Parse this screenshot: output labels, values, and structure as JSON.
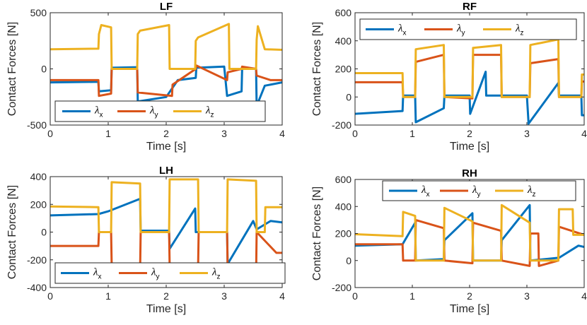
{
  "chart_data": [
    {
      "type": "line",
      "title": "LF",
      "xlabel": "Time [s]",
      "ylabel": "Contact Forces [N]",
      "xlim": [
        0,
        4
      ],
      "ylim": [
        -500,
        500
      ],
      "xticks": [
        0,
        1,
        2,
        3,
        4
      ],
      "yticks": [
        -500,
        0,
        500
      ],
      "legend_placement": "bottom",
      "series": [
        {
          "name": "λx",
          "color": "#0072BD",
          "x": [
            0,
            0.83,
            0.84,
            1.05,
            1.06,
            1.5,
            1.51,
            2.0,
            2.2,
            2.51,
            2.52,
            3.0,
            3.05,
            3.3,
            3.31,
            3.55,
            3.56,
            3.7,
            4.0
          ],
          "y": [
            -120,
            -115,
            -200,
            -190,
            10,
            15,
            -290,
            -250,
            -100,
            -80,
            10,
            20,
            -240,
            -200,
            10,
            0,
            -330,
            -150,
            -120
          ]
        },
        {
          "name": "λy",
          "color": "#D95319",
          "x": [
            0,
            0.83,
            0.84,
            1.05,
            1.06,
            1.5,
            1.51,
            2.1,
            2.11,
            2.51,
            2.52,
            3.05,
            3.06,
            3.3,
            3.31,
            3.55,
            3.56,
            3.8,
            4.0
          ],
          "y": [
            -100,
            -100,
            -240,
            -220,
            0,
            0,
            -210,
            -240,
            -140,
            0,
            30,
            -100,
            -30,
            0,
            20,
            0,
            -60,
            -100,
            -100
          ]
        },
        {
          "name": "λz",
          "color": "#EDB120",
          "x": [
            0,
            0.83,
            0.84,
            0.88,
            1.05,
            1.06,
            1.5,
            1.51,
            1.55,
            2.05,
            2.06,
            2.5,
            2.51,
            2.55,
            3.08,
            3.09,
            3.55,
            3.56,
            3.58,
            3.7,
            4.0
          ],
          "y": [
            175,
            180,
            310,
            390,
            370,
            0,
            0,
            310,
            340,
            390,
            0,
            0,
            250,
            280,
            400,
            0,
            0,
            260,
            380,
            175,
            170
          ]
        }
      ]
    },
    {
      "type": "line",
      "title": "RF",
      "xlabel": "Time [s]",
      "ylabel": "Contact Forces [N]",
      "xlim": [
        0,
        4
      ],
      "ylim": [
        -200,
        600
      ],
      "xticks": [
        0,
        1,
        2,
        3,
        4
      ],
      "yticks": [
        -200,
        0,
        200,
        400,
        600
      ],
      "legend_placement": "top",
      "series": [
        {
          "name": "λx",
          "color": "#0072BD",
          "x": [
            0,
            0.83,
            0.84,
            1.05,
            1.06,
            1.55,
            1.56,
            2.0,
            2.01,
            2.28,
            2.29,
            2.55,
            2.56,
            3.0,
            3.03,
            3.55,
            3.56,
            3.95,
            3.96,
            4.0
          ],
          "y": [
            -120,
            -100,
            10,
            10,
            -180,
            -80,
            10,
            10,
            -120,
            180,
            10,
            10,
            10,
            10,
            -190,
            100,
            10,
            10,
            -130,
            -130
          ]
        },
        {
          "name": "λy",
          "color": "#D95319",
          "x": [
            0,
            0.83,
            0.84,
            1.05,
            1.06,
            1.55,
            1.56,
            2.05,
            2.06,
            2.55,
            2.56,
            3.05,
            3.06,
            3.55,
            3.56,
            3.95,
            3.96,
            4.0
          ],
          "y": [
            105,
            105,
            0,
            0,
            250,
            300,
            0,
            -10,
            300,
            300,
            0,
            0,
            240,
            270,
            0,
            0,
            110,
            110
          ]
        },
        {
          "name": "λz",
          "color": "#EDB120",
          "x": [
            0,
            0.83,
            0.84,
            1.05,
            1.06,
            1.55,
            1.56,
            2.05,
            2.06,
            2.55,
            2.56,
            3.05,
            3.06,
            3.55,
            3.56,
            3.95,
            3.96,
            4.0
          ],
          "y": [
            170,
            170,
            0,
            0,
            340,
            370,
            0,
            0,
            350,
            370,
            0,
            0,
            370,
            410,
            0,
            0,
            160,
            160
          ]
        }
      ]
    },
    {
      "type": "line",
      "title": "LH",
      "xlabel": "Time [s]",
      "ylabel": "Contact Forces [N]",
      "xlim": [
        0,
        4
      ],
      "ylim": [
        -400,
        400
      ],
      "xticks": [
        0,
        1,
        2,
        3,
        4
      ],
      "yticks": [
        -400,
        -200,
        0,
        200,
        400
      ],
      "legend_placement": "bottom",
      "series": [
        {
          "name": "λx",
          "color": "#0072BD",
          "x": [
            0,
            0.83,
            1.0,
            1.55,
            1.56,
            2.05,
            2.06,
            2.5,
            2.51,
            3.05,
            3.06,
            3.5,
            3.56,
            3.8,
            4.0
          ],
          "y": [
            120,
            130,
            150,
            240,
            10,
            10,
            -120,
            170,
            0,
            0,
            -230,
            80,
            20,
            80,
            70
          ]
        },
        {
          "name": "λy",
          "color": "#D95319",
          "x": [
            0,
            0.83,
            0.84,
            1.05,
            1.06,
            1.55,
            1.56,
            2.05,
            2.06,
            2.55,
            2.56,
            3.05,
            3.06,
            3.55,
            3.56,
            3.9,
            4.0
          ],
          "y": [
            -100,
            -100,
            0,
            0,
            -230,
            -280,
            0,
            0,
            -250,
            -260,
            0,
            0,
            -270,
            -310,
            0,
            -150,
            -150
          ]
        },
        {
          "name": "λz",
          "color": "#EDB120",
          "x": [
            0,
            0.83,
            0.84,
            1.05,
            1.06,
            1.55,
            1.56,
            2.05,
            2.06,
            2.55,
            2.56,
            3.05,
            3.06,
            3.55,
            3.56,
            3.7,
            3.71,
            4.0
          ],
          "y": [
            185,
            180,
            0,
            0,
            360,
            350,
            0,
            0,
            380,
            380,
            0,
            0,
            380,
            370,
            0,
            0,
            180,
            180
          ]
        }
      ]
    },
    {
      "type": "line",
      "title": "RH",
      "xlabel": "Time [s]",
      "ylabel": "Contact Forces [N]",
      "xlim": [
        0,
        4
      ],
      "ylim": [
        -200,
        600
      ],
      "xticks": [
        0,
        1,
        2,
        3,
        4
      ],
      "yticks": [
        -200,
        0,
        200,
        400,
        600
      ],
      "legend_placement": "top",
      "series": [
        {
          "name": "λx",
          "color": "#0072BD",
          "x": [
            0,
            0.83,
            1.05,
            1.06,
            1.55,
            1.56,
            2.05,
            2.06,
            2.55,
            2.56,
            3.05,
            3.06,
            3.55,
            3.56,
            3.9,
            4.0
          ],
          "y": [
            110,
            120,
            280,
            0,
            10,
            150,
            350,
            0,
            0,
            150,
            410,
            0,
            20,
            20,
            110,
            100
          ]
        },
        {
          "name": "λy",
          "color": "#D95319",
          "x": [
            0,
            0.83,
            0.84,
            1.05,
            1.06,
            1.55,
            1.56,
            2.05,
            2.06,
            2.55,
            2.56,
            3.05,
            3.06,
            3.2,
            3.21,
            3.55,
            3.56,
            4.0
          ],
          "y": [
            120,
            120,
            0,
            0,
            300,
            240,
            0,
            -20,
            280,
            220,
            0,
            -40,
            200,
            200,
            -40,
            0,
            250,
            190
          ]
        },
        {
          "name": "λz",
          "color": "#EDB120",
          "x": [
            0,
            0.83,
            0.84,
            1.05,
            1.06,
            1.25,
            1.26,
            1.55,
            1.56,
            2.05,
            2.06,
            2.55,
            2.56,
            3.05,
            3.06,
            3.55,
            3.56,
            3.8,
            3.81,
            4.0
          ],
          "y": [
            195,
            180,
            360,
            330,
            0,
            0,
            0,
            0,
            390,
            290,
            0,
            0,
            410,
            280,
            0,
            0,
            380,
            380,
            190,
            190
          ]
        }
      ]
    }
  ]
}
